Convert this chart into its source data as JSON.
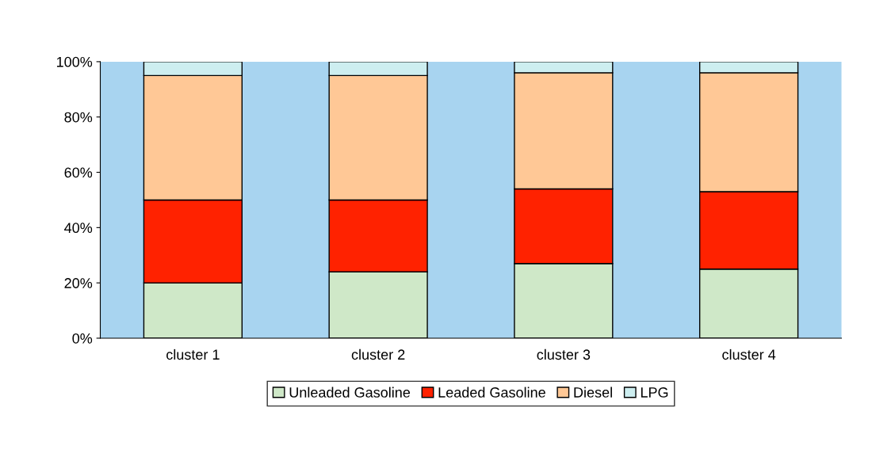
{
  "chart_data": {
    "type": "bar",
    "stacked": true,
    "categories": [
      "cluster 1",
      "cluster 2",
      "cluster 3",
      "cluster 4"
    ],
    "series": [
      {
        "name": "Unleaded Gasoline",
        "color": "#cfe8c8",
        "values": [
          20,
          24,
          27,
          25
        ]
      },
      {
        "name": "Leaded Gasoline",
        "color": "#ff2200",
        "values": [
          30,
          26,
          27,
          28
        ]
      },
      {
        "name": "Diesel",
        "color": "#ffc896",
        "values": [
          45,
          45,
          42,
          43
        ]
      },
      {
        "name": "LPG",
        "color": "#cdeef0",
        "values": [
          5,
          5,
          4,
          4
        ]
      }
    ],
    "ylim": [
      0,
      100
    ],
    "yticks": [
      {
        "value": 0,
        "label": "0%"
      },
      {
        "value": 20,
        "label": "20%"
      },
      {
        "value": 40,
        "label": "40%"
      },
      {
        "value": 60,
        "label": "60%"
      },
      {
        "value": 80,
        "label": "80%"
      },
      {
        "value": 100,
        "label": "100%"
      }
    ],
    "grid": false,
    "legend": "bottom"
  }
}
